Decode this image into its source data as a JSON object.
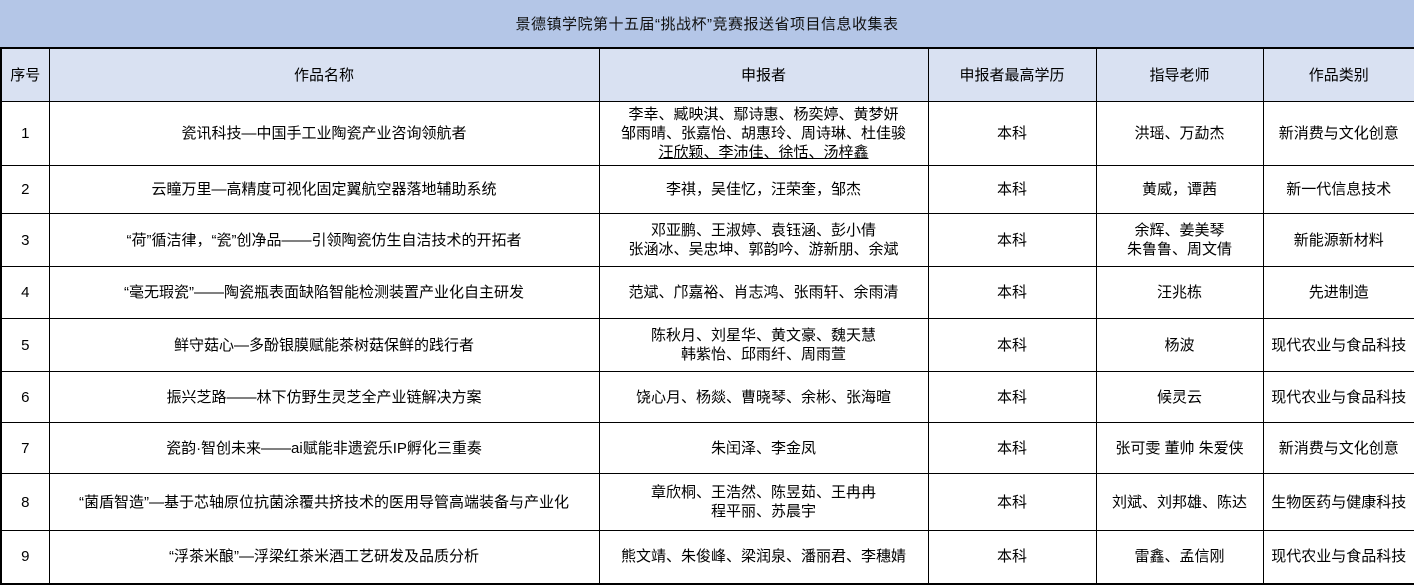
{
  "title": "景德镇学院第十五届“挑战杯”竞赛报送省项目信息收集表",
  "colors": {
    "title_bg": "#b4c6e7",
    "header_bg": "#d9e1f2",
    "border": "#000000",
    "cell_bg": "#ffffff",
    "text": "#000000"
  },
  "columns": [
    "序号",
    "作品名称",
    "申报者",
    "申报者最高学历",
    "指导老师",
    "作品类别"
  ],
  "rows": [
    {
      "no": "1",
      "name": "瓷讯科技—中国手工业陶瓷产业咨询领航者",
      "applicants": [
        "李幸、臧映淇、鄢诗惠、杨奕婷、黄梦妍",
        "邹雨晴、张嘉怡、胡惠玲、周诗琳、杜佳骏",
        "汪欣颖、李沛佳、徐恬、汤梓鑫"
      ],
      "underline_lines": [
        2
      ],
      "degree": "本科",
      "advisors": [
        "洪瑶、万勐杰"
      ],
      "category": "新消费与文化创意"
    },
    {
      "no": "2",
      "name": "云瞳万里—高精度可视化固定翼航空器落地辅助系统",
      "applicants": [
        "李祺，吴佳忆，汪荣奎，邹杰"
      ],
      "underline_lines": [],
      "degree": "本科",
      "advisors": [
        "黄威，谭茜"
      ],
      "category": "新一代信息技术"
    },
    {
      "no": "3",
      "name": "“荷”循洁律，“瓷”创净品——引领陶瓷仿生自洁技术的开拓者",
      "applicants": [
        "邓亚鹏、王淑婷、袁钰涵、彭小倩",
        "张涵冰、吴忠坤、郭韵吟、游新朋、余斌"
      ],
      "underline_lines": [],
      "degree": "本科",
      "advisors": [
        "余辉、姜美琴",
        "朱鲁鲁、周文倩"
      ],
      "category": "新能源新材料"
    },
    {
      "no": "4",
      "name": "“毫无瑕瓷”——陶瓷瓶表面缺陷智能检测装置产业化自主研发",
      "applicants": [
        "范斌、邝嘉裕、肖志鸿、张雨轩、余雨清"
      ],
      "underline_lines": [],
      "degree": "本科",
      "advisors": [
        "汪兆栋"
      ],
      "category": "先进制造"
    },
    {
      "no": "5",
      "name": "鲜守菇心—多酚银膜赋能茶树菇保鲜的践行者",
      "applicants": [
        "陈秋月、刘星华、黄文豪、魏天慧",
        "韩紫怡、邱雨纤、周雨萱"
      ],
      "underline_lines": [],
      "degree": "本科",
      "advisors": [
        "杨波"
      ],
      "category": "现代农业与食品科技"
    },
    {
      "no": "6",
      "name": "振兴芝路——林下仿野生灵芝全产业链解决方案",
      "applicants": [
        "饶心月、杨燚、曹晓琴、余彬、张海暄"
      ],
      "underline_lines": [],
      "degree": "本科",
      "advisors": [
        "候灵云"
      ],
      "category": "现代农业与食品科技"
    },
    {
      "no": "7",
      "name": "瓷韵·智创未来——ai赋能非遗瓷乐IP孵化三重奏",
      "applicants": [
        "朱闰泽、李金凤"
      ],
      "underline_lines": [],
      "degree": "本科",
      "advisors": [
        "张可雯 董帅 朱爱侠"
      ],
      "category": "新消费与文化创意"
    },
    {
      "no": "8",
      "name": "“菌盾智造”—基于芯轴原位抗菌涂覆共挤技术的医用导管高端装备与产业化",
      "applicants": [
        "章欣桐、王浩然、陈昱茹、王冉冉",
        "程平丽、苏晨宇"
      ],
      "underline_lines": [],
      "degree": "本科",
      "advisors": [
        "刘斌、刘邦雄、陈达"
      ],
      "category": "生物医药与健康科技"
    },
    {
      "no": "9",
      "name": "“浮茶米酿”—浮梁红茶米酒工艺研发及品质分析",
      "applicants": [
        "熊文靖、朱俊峰、梁润泉、潘丽君、李穗婧"
      ],
      "underline_lines": [],
      "degree": "本科",
      "advisors": [
        "雷鑫、孟信刚"
      ],
      "category": "现代农业与食品科技"
    }
  ]
}
